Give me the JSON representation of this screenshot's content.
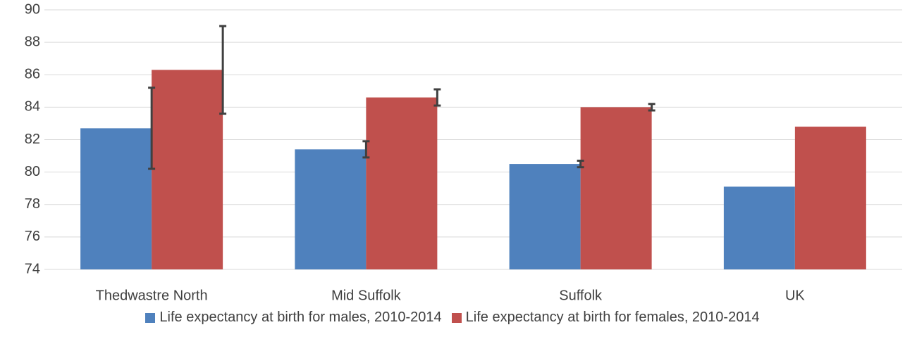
{
  "chart_data": {
    "type": "bar",
    "categories": [
      "Thedwastre North",
      "Mid Suffolk",
      "Suffolk",
      "UK"
    ],
    "series": [
      {
        "name": "Life expectancy at birth for males, 2010-2014",
        "color": "#4f81bd",
        "values": [
          82.7,
          81.4,
          80.5,
          79.1
        ],
        "errors": [
          2.5,
          0.5,
          0.2,
          null
        ]
      },
      {
        "name": "Life expectancy at birth for females, 2010-2014",
        "color": "#c0504d",
        "values": [
          86.3,
          84.6,
          84.0,
          82.8
        ],
        "errors": [
          2.7,
          0.5,
          0.2,
          null
        ]
      }
    ],
    "ylim": [
      74,
      90
    ],
    "yticks": [
      74,
      76,
      78,
      80,
      82,
      84,
      86,
      88,
      90
    ],
    "grid": true,
    "error_bar_color": "#404040"
  }
}
